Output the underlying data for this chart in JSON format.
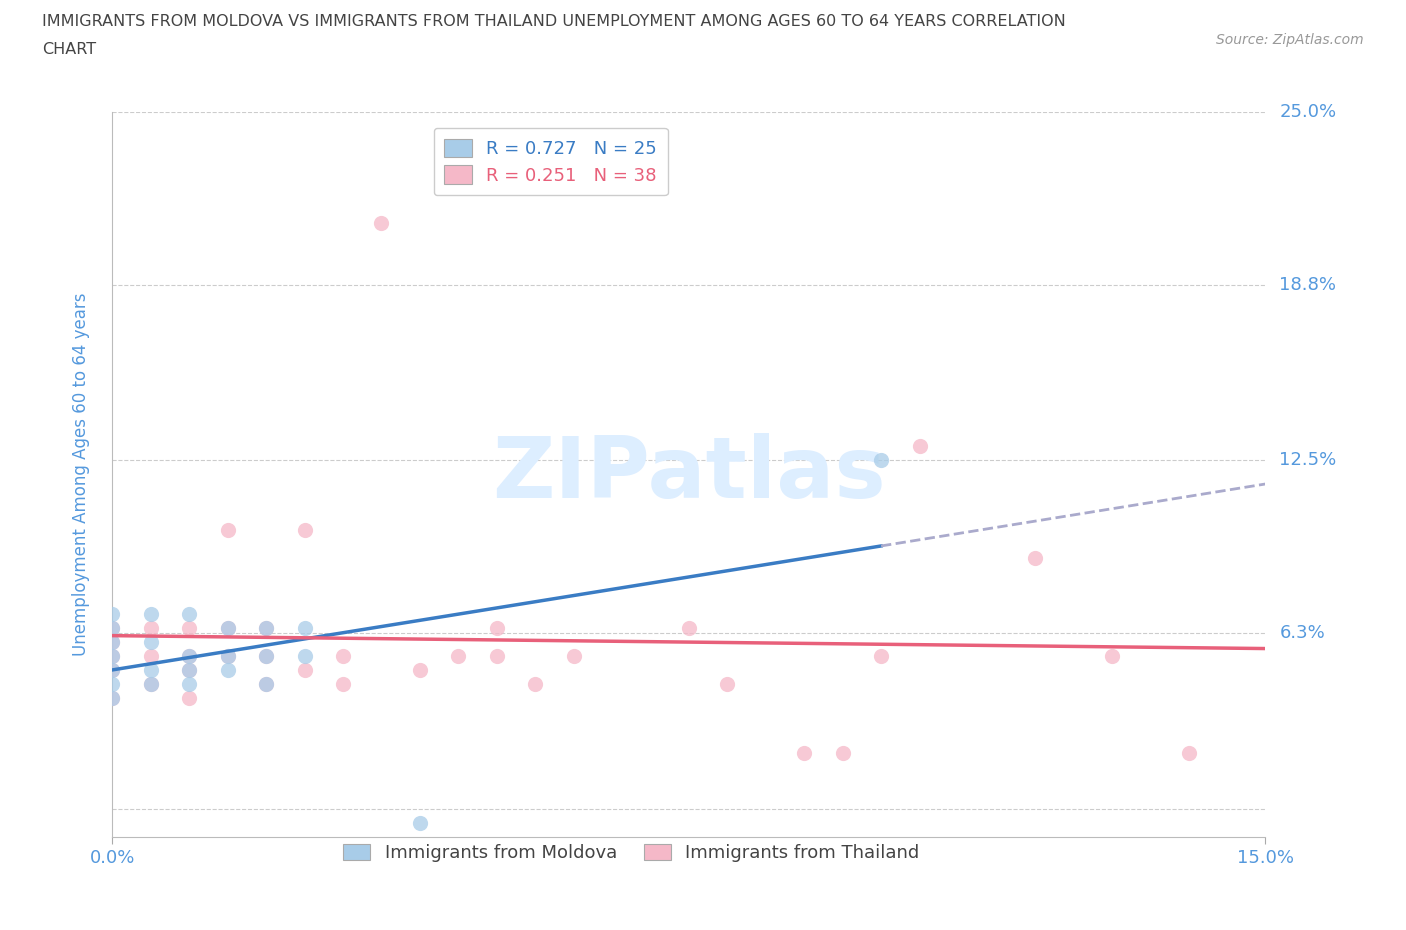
{
  "title_line1": "IMMIGRANTS FROM MOLDOVA VS IMMIGRANTS FROM THAILAND UNEMPLOYMENT AMONG AGES 60 TO 64 YEARS CORRELATION",
  "title_line2": "CHART",
  "source_text": "Source: ZipAtlas.com",
  "ylabel": "Unemployment Among Ages 60 to 64 years",
  "xmin": 0.0,
  "xmax": 0.15,
  "ymin": -0.01,
  "ymax": 0.25,
  "ytick_positions": [
    0.0,
    0.063,
    0.125,
    0.188,
    0.25
  ],
  "ytick_labels": [
    "",
    "6.3%",
    "12.5%",
    "18.8%",
    "25.0%"
  ],
  "xtick_positions": [
    0.0,
    0.15
  ],
  "xtick_labels": [
    "0.0%",
    "15.0%"
  ],
  "legend_labels": [
    "Immigrants from Moldova",
    "Immigrants from Thailand"
  ],
  "moldova_R": "0.727",
  "moldova_N": "25",
  "thailand_R": "0.251",
  "thailand_N": "38",
  "moldova_color": "#a8cce8",
  "thailand_color": "#f5b8c8",
  "moldova_line_color": "#3a7cc4",
  "thailand_line_color": "#e8607a",
  "moldova_dash_color": "#aaaacc",
  "axis_label_color": "#5599dd",
  "grid_color": "#cccccc",
  "title_color": "#444444",
  "moldova_scatter_x": [
    0.0,
    0.0,
    0.0,
    0.0,
    0.0,
    0.0,
    0.0,
    0.005,
    0.005,
    0.005,
    0.005,
    0.01,
    0.01,
    0.01,
    0.01,
    0.015,
    0.015,
    0.015,
    0.02,
    0.02,
    0.02,
    0.025,
    0.025,
    0.04,
    0.1
  ],
  "moldova_scatter_y": [
    0.04,
    0.045,
    0.05,
    0.055,
    0.06,
    0.065,
    0.07,
    0.045,
    0.05,
    0.06,
    0.07,
    0.045,
    0.05,
    0.055,
    0.07,
    0.05,
    0.055,
    0.065,
    0.045,
    0.055,
    0.065,
    0.055,
    0.065,
    -0.005,
    0.125
  ],
  "thailand_scatter_x": [
    0.0,
    0.0,
    0.0,
    0.0,
    0.0,
    0.005,
    0.005,
    0.005,
    0.01,
    0.01,
    0.01,
    0.01,
    0.015,
    0.015,
    0.015,
    0.02,
    0.02,
    0.02,
    0.025,
    0.025,
    0.03,
    0.03,
    0.035,
    0.04,
    0.045,
    0.05,
    0.05,
    0.055,
    0.06,
    0.075,
    0.08,
    0.09,
    0.095,
    0.1,
    0.105,
    0.12,
    0.13,
    0.14
  ],
  "thailand_scatter_y": [
    0.04,
    0.05,
    0.055,
    0.06,
    0.065,
    0.045,
    0.055,
    0.065,
    0.04,
    0.05,
    0.055,
    0.065,
    0.055,
    0.065,
    0.1,
    0.045,
    0.055,
    0.065,
    0.05,
    0.1,
    0.045,
    0.055,
    0.21,
    0.05,
    0.055,
    0.055,
    0.065,
    0.045,
    0.055,
    0.065,
    0.045,
    0.02,
    0.02,
    0.055,
    0.13,
    0.09,
    0.055,
    0.02
  ],
  "background_color": "#ffffff",
  "watermark_text": "ZIPatlas",
  "watermark_color": "#ddeeff",
  "figsize": [
    14.06,
    9.3
  ],
  "dpi": 100
}
